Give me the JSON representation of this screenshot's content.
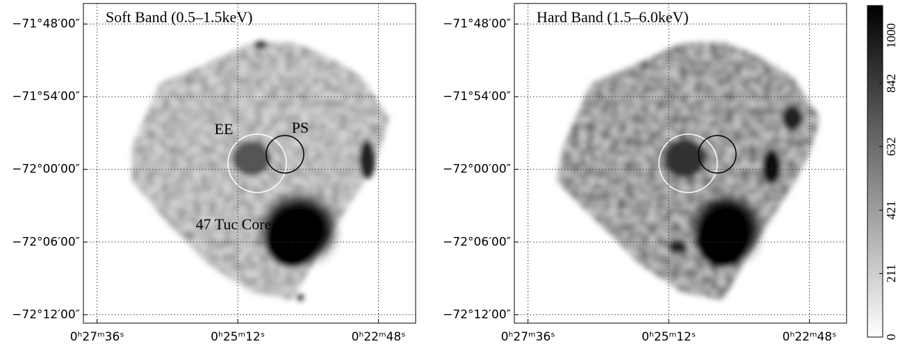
{
  "chart_data": [
    {
      "type": "image",
      "title": "Soft Band (0.5–1.5keV)",
      "annotations": [
        "EE",
        "PS",
        "47 Tuc Core"
      ],
      "xlim": [
        1670,
        1330
      ],
      "ylim": [
        -4332.7,
        -4306.3
      ],
      "xticks": [
        {
          "value": 1656,
          "label": "0ʰ27ᵐ36ˢ"
        },
        {
          "value": 1512,
          "label": "0ʰ25ᵐ12ˢ"
        },
        {
          "value": 1368,
          "label": "0ʰ22ᵐ48ˢ"
        }
      ],
      "yticks": [
        {
          "value": -4308,
          "label": "−71°48′00″"
        },
        {
          "value": -4314,
          "label": "−71°54′00″"
        },
        {
          "value": -4320,
          "label": "−72°00′00″"
        },
        {
          "value": -4326,
          "label": "−72°06′00″"
        },
        {
          "value": -4332,
          "label": "−72°12′00″"
        }
      ],
      "grid": true
    },
    {
      "type": "image",
      "title": "Hard Band (1.5–6.0keV)",
      "xlim": [
        1670,
        1330
      ],
      "ylim": [
        -4332.7,
        -4306.3
      ],
      "xticks": [
        {
          "value": 1656,
          "label": "0ʰ27ᵐ36ˢ"
        },
        {
          "value": 1512,
          "label": "0ʰ25ᵐ12ˢ"
        },
        {
          "value": 1368,
          "label": "0ʰ22ᵐ48ˢ"
        }
      ],
      "yticks": [
        {
          "value": -4308,
          "label": "−71°48′00″"
        },
        {
          "value": -4314,
          "label": "−71°54′00″"
        },
        {
          "value": -4320,
          "label": "−72°00′00″"
        },
        {
          "value": -4326,
          "label": "−72°06′00″"
        },
        {
          "value": -4332,
          "label": "−72°12′00″"
        }
      ],
      "grid": true
    },
    {
      "type": "colorbar",
      "ylim": [
        0,
        1100
      ],
      "yticks": [
        0,
        211,
        421,
        632,
        842,
        1000
      ],
      "colors": [
        "#ffffff",
        "#000000"
      ]
    }
  ]
}
